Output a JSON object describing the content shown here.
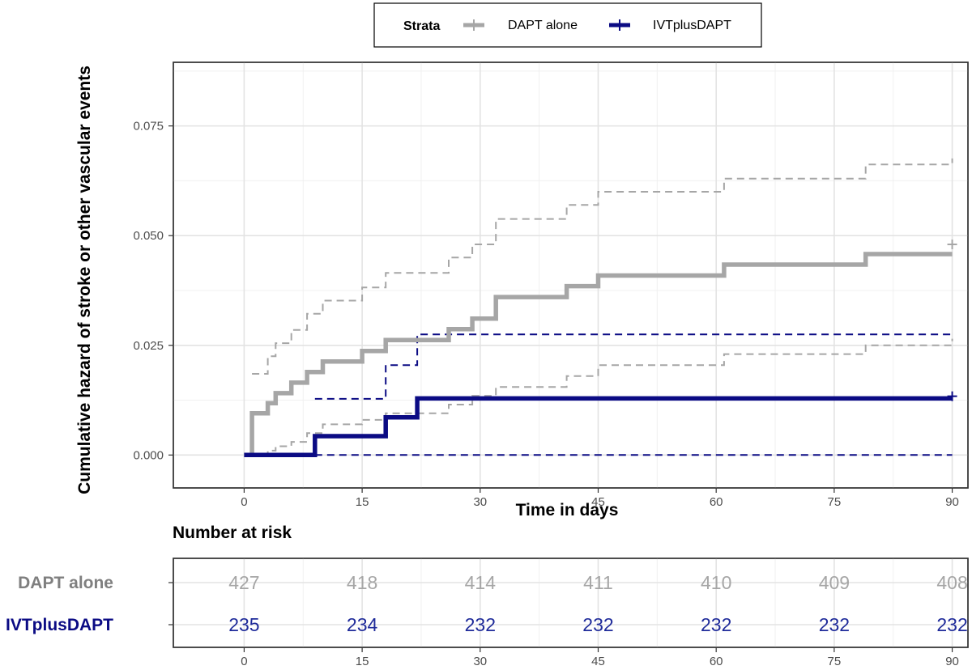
{
  "chart_data": {
    "type": "line",
    "subtype": "cumulative-hazard-step",
    "xlabel": "Time in days",
    "ylabel": "Cumulative hazard of stroke or other vascular events",
    "xlim": [
      -9,
      92
    ],
    "ylim": [
      -0.0075,
      0.0895
    ],
    "x_ticks": [
      0,
      15,
      30,
      45,
      60,
      75,
      90
    ],
    "y_ticks": [
      0.0,
      0.025,
      0.05,
      0.075
    ],
    "y_tick_labels": [
      "0.000",
      "0.025",
      "0.050",
      "0.075"
    ],
    "grid": true,
    "legend": {
      "title": "Strata",
      "position": "top-center",
      "entries": [
        {
          "label": "DAPT alone",
          "color": "#a6a6a6"
        },
        {
          "label": "IVTplusDAPT",
          "color": "#0b0b84"
        }
      ]
    },
    "series": [
      {
        "name": "DAPT alone",
        "color": "#a6a6a6",
        "censor_mark": [
          90,
          0.048
        ],
        "estimate": [
          [
            0,
            0
          ],
          [
            1,
            0.0095
          ],
          [
            3,
            0.0118
          ],
          [
            4,
            0.0141
          ],
          [
            6,
            0.0165
          ],
          [
            8,
            0.0189
          ],
          [
            10,
            0.0213
          ],
          [
            15,
            0.0237
          ],
          [
            18,
            0.0262
          ],
          [
            26,
            0.0287
          ],
          [
            29,
            0.0311
          ],
          [
            32,
            0.036
          ],
          [
            41,
            0.0385
          ],
          [
            45,
            0.0409
          ],
          [
            61,
            0.0434
          ],
          [
            79,
            0.0458
          ],
          [
            90,
            0.0458
          ]
        ],
        "upper_ci": [
          [
            1,
            0.0185
          ],
          [
            3,
            0.0225
          ],
          [
            4,
            0.0255
          ],
          [
            6,
            0.0285
          ],
          [
            8,
            0.0322
          ],
          [
            10,
            0.0352
          ],
          [
            15,
            0.0382
          ],
          [
            18,
            0.0415
          ],
          [
            26,
            0.045
          ],
          [
            29,
            0.048
          ],
          [
            32,
            0.0538
          ],
          [
            41,
            0.057
          ],
          [
            45,
            0.06
          ],
          [
            61,
            0.063
          ],
          [
            79,
            0.0662
          ],
          [
            90,
            0.0676
          ]
        ],
        "lower_ci": [
          [
            1,
            0.0
          ],
          [
            3,
            0.001
          ],
          [
            4,
            0.002
          ],
          [
            6,
            0.003
          ],
          [
            8,
            0.005
          ],
          [
            10,
            0.007
          ],
          [
            15,
            0.008
          ],
          [
            18,
            0.0095
          ],
          [
            26,
            0.0115
          ],
          [
            29,
            0.0135
          ],
          [
            32,
            0.0155
          ],
          [
            41,
            0.018
          ],
          [
            45,
            0.0205
          ],
          [
            61,
            0.023
          ],
          [
            79,
            0.025
          ],
          [
            90,
            0.0265
          ]
        ]
      },
      {
        "name": "IVTplusDAPT",
        "color": "#0b0b84",
        "censor_mark": [
          90,
          0.0134
        ],
        "estimate": [
          [
            0,
            0
          ],
          [
            9,
            0.0043
          ],
          [
            18,
            0.0086
          ],
          [
            22,
            0.0129
          ],
          [
            90,
            0.0129
          ]
        ],
        "upper_ci": [
          [
            9,
            0.0128
          ],
          [
            18,
            0.0205
          ],
          [
            22,
            0.0275
          ],
          [
            90,
            0.0275
          ]
        ],
        "lower_ci": [
          [
            9,
            0.0
          ],
          [
            90,
            0.0
          ]
        ]
      }
    ],
    "risk_table": {
      "title": "Number at risk",
      "times": [
        0,
        15,
        30,
        45,
        60,
        75,
        90
      ],
      "rows": [
        {
          "label": "DAPT alone",
          "color": "#a6a6a6",
          "label_color": "#7f7f7f",
          "values": [
            "427",
            "418",
            "414",
            "411",
            "410",
            "409",
            "408"
          ]
        },
        {
          "label": "IVTplusDAPT",
          "color": "#1f2b9a",
          "label_color": "#0b0b84",
          "values": [
            "235",
            "234",
            "232",
            "232",
            "232",
            "232",
            "232"
          ]
        }
      ],
      "x_tick_labels": [
        "0",
        "15",
        "30",
        "45",
        "60",
        "75",
        "90"
      ]
    }
  }
}
